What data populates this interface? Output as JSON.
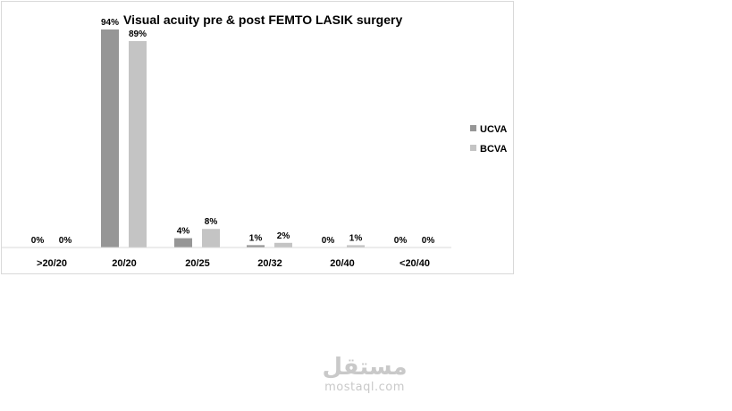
{
  "chart_data": {
    "type": "bar",
    "title": "Visual acuity pre & post FEMTO LASIK surgery",
    "categories": [
      ">20/20",
      "20/20",
      "20/25",
      "20/32",
      "20/40",
      "<20/40"
    ],
    "series": [
      {
        "name": "UCVA",
        "values": [
          0,
          94,
          4,
          1,
          0,
          0
        ],
        "labels": [
          "0%",
          "94%",
          "4%",
          "1%",
          "0%",
          "0%"
        ],
        "color": "#969696"
      },
      {
        "name": "BCVA",
        "values": [
          0,
          89,
          8,
          2,
          1,
          0
        ],
        "labels": [
          "0%",
          "89%",
          "8%",
          "2%",
          "1%",
          "0%"
        ],
        "color": "#c4c4c4"
      }
    ],
    "ylim": [
      0,
      94
    ],
    "grid": false,
    "legend_position": "right"
  },
  "watermark": {
    "logo_text": "مستقل",
    "domain": "mostaql.com"
  }
}
